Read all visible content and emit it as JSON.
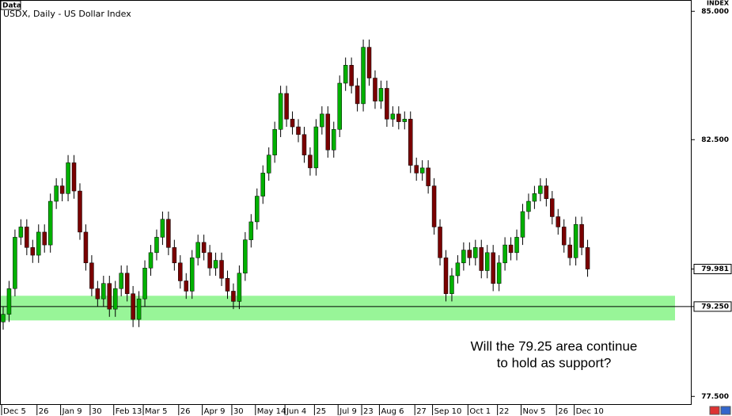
{
  "chart_data": {
    "type": "candlestick",
    "data_label": "Data",
    "title": "USDX, Daily - US Dollar Index",
    "axis_label": "INDEX",
    "ylim": [
      77.35,
      85.22
    ],
    "yticks": [
      {
        "value": 85,
        "label": "85.000"
      },
      {
        "value": 82.5,
        "label": "82.500"
      },
      {
        "value": 77.5,
        "label": "77.500"
      }
    ],
    "up_color": "#00b000",
    "down_color": "#7a0000",
    "wick_color": "#000000",
    "categories": [
      "Dec 5",
      null,
      null,
      null,
      null,
      null,
      "26",
      null,
      null,
      null,
      "Jan 9",
      null,
      null,
      null,
      null,
      "30",
      null,
      null,
      null,
      "Feb 13",
      null,
      null,
      null,
      null,
      "Mar 5",
      null,
      null,
      null,
      null,
      null,
      "26",
      null,
      null,
      null,
      "Apr 9",
      null,
      null,
      null,
      null,
      "30",
      null,
      null,
      null,
      "May 14",
      null,
      null,
      null,
      null,
      "Jun 4",
      null,
      null,
      null,
      null,
      "25",
      null,
      null,
      null,
      "Jul 9",
      null,
      null,
      null,
      "23",
      null,
      null,
      "Aug 6",
      null,
      null,
      null,
      null,
      null,
      "27",
      null,
      null,
      "Sep 10",
      null,
      null,
      null,
      null,
      null,
      "Oct 1",
      null,
      null,
      null,
      null,
      "22",
      null,
      null,
      null,
      "Nov 5",
      null,
      null,
      null,
      null,
      null,
      "26",
      null,
      null,
      "Dec 10",
      null,
      null
    ],
    "open": [
      78.95,
      79.1,
      79.6,
      80.6,
      80.8,
      80.4,
      80.25,
      80.7,
      80.45,
      81.3,
      81.6,
      81.45,
      82.05,
      81.5,
      80.7,
      80.1,
      79.6,
      79.4,
      79.7,
      79.2,
      79.6,
      79.9,
      79.5,
      79.0,
      79.4,
      80.0,
      80.3,
      80.6,
      80.95,
      80.4,
      80.1,
      79.75,
      79.55,
      80.2,
      80.5,
      80.3,
      80.0,
      80.15,
      79.8,
      79.55,
      79.35,
      79.9,
      80.55,
      80.9,
      81.4,
      81.85,
      82.2,
      82.7,
      83.4,
      82.9,
      82.75,
      82.6,
      82.2,
      81.95,
      82.75,
      83.0,
      82.3,
      82.7,
      83.6,
      83.95,
      83.55,
      83.2,
      84.3,
      83.7,
      83.25,
      83.5,
      82.9,
      83.0,
      82.85,
      82.9,
      82.0,
      81.85,
      81.95,
      81.6,
      80.8,
      80.2,
      79.5,
      79.85,
      80.1,
      80.35,
      80.2,
      80.4,
      79.95,
      80.3,
      79.7,
      80.1,
      80.45,
      80.3,
      80.6,
      81.1,
      81.3,
      81.45,
      81.6,
      81.35,
      81.0,
      80.8,
      80.45,
      80.2,
      80.85,
      80.4
    ],
    "high": [
      79.25,
      79.75,
      80.75,
      80.95,
      80.95,
      80.55,
      80.85,
      80.85,
      81.45,
      81.75,
      81.75,
      82.2,
      82.2,
      81.65,
      80.85,
      80.25,
      79.75,
      79.85,
      79.85,
      79.75,
      80.05,
      80.05,
      79.65,
      79.55,
      80.15,
      80.45,
      80.75,
      81.1,
      81.1,
      80.55,
      80.25,
      79.9,
      80.35,
      80.65,
      80.65,
      80.45,
      80.3,
      80.3,
      79.95,
      79.7,
      80.05,
      80.7,
      81.05,
      81.55,
      82.0,
      82.35,
      82.85,
      83.55,
      83.55,
      83.05,
      82.9,
      82.75,
      82.35,
      82.9,
      83.15,
      83.15,
      82.85,
      83.75,
      84.1,
      84.1,
      83.7,
      84.45,
      84.45,
      83.85,
      83.65,
      83.65,
      83.15,
      83.15,
      83.05,
      83.05,
      82.15,
      82.1,
      82.1,
      81.75,
      80.95,
      80.35,
      80.0,
      80.25,
      80.5,
      80.5,
      80.55,
      80.55,
      80.45,
      80.45,
      80.25,
      80.6,
      80.6,
      80.75,
      81.25,
      81.45,
      81.6,
      81.75,
      81.75,
      81.5,
      81.15,
      80.95,
      80.6,
      81.0,
      81.0,
      80.55
    ],
    "low": [
      78.8,
      78.95,
      79.45,
      80.45,
      80.25,
      80.1,
      80.1,
      80.3,
      80.3,
      81.15,
      81.3,
      81.3,
      81.35,
      80.55,
      79.95,
      79.45,
      79.25,
      79.25,
      79.05,
      79.05,
      79.45,
      79.35,
      78.85,
      78.85,
      79.25,
      79.85,
      80.15,
      80.45,
      80.25,
      79.95,
      79.6,
      79.4,
      79.4,
      80.05,
      80.15,
      79.85,
      79.85,
      79.65,
      79.4,
      79.2,
      79.2,
      79.75,
      80.4,
      80.75,
      81.25,
      81.7,
      82.05,
      82.55,
      82.75,
      82.6,
      82.45,
      82.05,
      81.8,
      81.8,
      82.6,
      82.15,
      82.15,
      82.55,
      83.45,
      83.4,
      83.05,
      83.05,
      83.55,
      83.1,
      83.1,
      82.75,
      82.75,
      82.7,
      82.7,
      81.85,
      81.7,
      81.7,
      81.45,
      80.65,
      80.05,
      79.35,
      79.35,
      79.7,
      79.95,
      80.05,
      80.05,
      79.8,
      79.8,
      79.55,
      79.55,
      79.95,
      80.15,
      80.15,
      80.45,
      80.95,
      81.15,
      81.3,
      81.2,
      80.85,
      80.65,
      80.3,
      80.05,
      80.05,
      80.25,
      79.83
    ],
    "close": [
      79.1,
      79.6,
      80.6,
      80.8,
      80.4,
      80.25,
      80.7,
      80.45,
      81.3,
      81.6,
      81.45,
      82.05,
      81.5,
      80.7,
      80.1,
      79.6,
      79.4,
      79.7,
      79.2,
      79.6,
      79.9,
      79.5,
      79.0,
      79.4,
      80.0,
      80.3,
      80.6,
      80.95,
      80.4,
      80.1,
      79.75,
      79.55,
      80.2,
      80.5,
      80.3,
      80.0,
      80.15,
      79.8,
      79.55,
      79.35,
      79.9,
      80.55,
      80.9,
      81.4,
      81.85,
      82.2,
      82.7,
      83.4,
      82.9,
      82.75,
      82.6,
      82.2,
      81.95,
      82.75,
      83.0,
      82.3,
      82.7,
      83.6,
      83.95,
      83.55,
      83.2,
      84.3,
      83.7,
      83.25,
      83.5,
      82.9,
      83.0,
      82.85,
      82.9,
      82.0,
      81.85,
      81.95,
      81.6,
      80.8,
      80.2,
      79.5,
      79.85,
      80.1,
      80.35,
      80.2,
      80.4,
      79.95,
      80.3,
      79.7,
      80.1,
      80.45,
      80.3,
      80.6,
      81.1,
      81.3,
      81.45,
      81.6,
      81.35,
      81.0,
      80.8,
      80.45,
      80.2,
      80.85,
      80.4,
      79.98
    ],
    "current_price": {
      "value": 79.981,
      "label": "79.981"
    },
    "support_line": {
      "value": 79.25,
      "label": "79.250",
      "color": "#000000"
    },
    "support_zone": {
      "range": [
        78.98,
        79.46
      ],
      "color": "#98f598"
    },
    "annotation": [
      "Will the 79.25 area continue",
      "to hold as support?"
    ]
  }
}
